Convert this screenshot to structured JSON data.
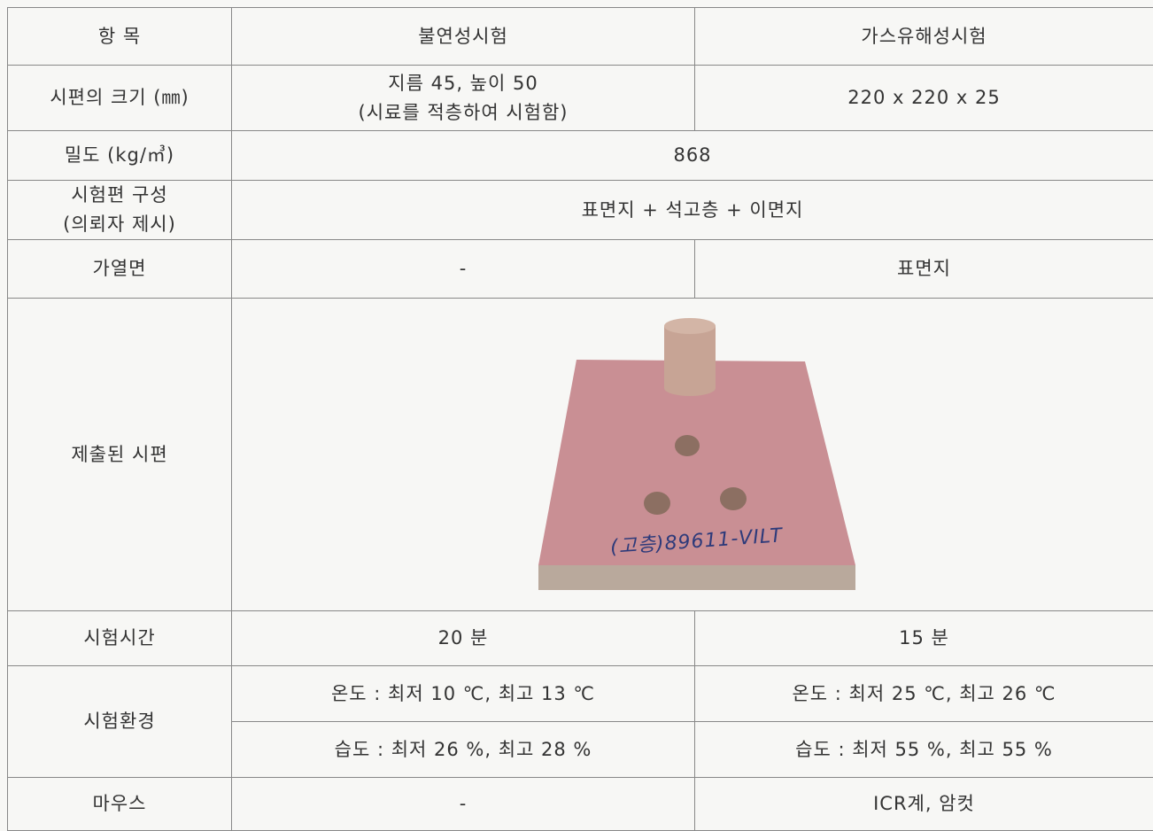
{
  "table": {
    "header": [
      "항 목",
      "불연성시험",
      "가스유해성시험"
    ],
    "rows": [
      [
        "시편의 크기 (㎜)",
        [
          "지름 45, 높이 50",
          "(시료를 적층하여 시험함)"
        ],
        "220 x 220 x 25"
      ],
      [
        "밀도 (kg/㎥)",
        "868"
      ],
      [
        [
          "시험편 구성",
          "(의뢰자 제시)"
        ],
        "표면지 + 석고층 + 이면지"
      ],
      [
        "가열면",
        "-",
        "표면지"
      ],
      [
        "제출된 시편",
        "(고층)89611-VILT"
      ],
      [
        "시험시간",
        "20 분",
        "15 분"
      ],
      [
        "시험환경",
        "온도 : 최저 10 ℃, 최고 13 ℃",
        "온도 : 최저 25 ℃, 최고 26 ℃",
        "습도 : 최저 26 %, 최고 28 %",
        "습도 : 최저 55 %, 최고 55 %"
      ],
      [
        "마우스",
        "-",
        "ICR계, 암컷"
      ]
    ]
  }
}
